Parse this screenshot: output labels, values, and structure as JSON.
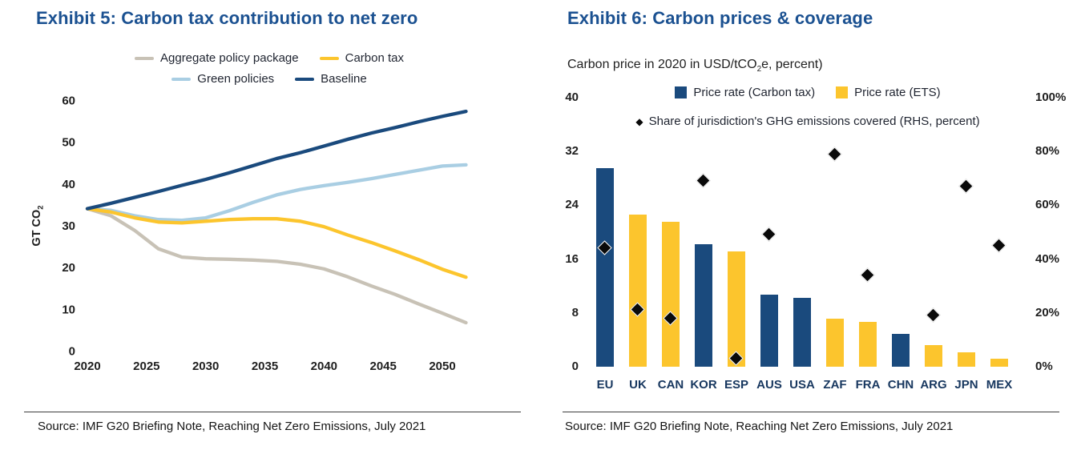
{
  "colors": {
    "navy": "#1a4a7d",
    "yellow": "#fcc52d",
    "lightblue": "#a9cee3",
    "gray": "#c8c2b6",
    "title_blue": "#1b5191",
    "diamond_black": "#0a0a0a",
    "tick_text": "#1f1f1f",
    "category_text": "#17375f"
  },
  "chart_data": [
    {
      "type": "line",
      "title": "Exhibit 5: Carbon tax contribution to net zero",
      "ylabel_pre": "GT CO",
      "ylabel_sub": "2",
      "ylim": [
        0,
        60
      ],
      "yticks": [
        0,
        10,
        20,
        30,
        40,
        50,
        60
      ],
      "xticks": [
        2020,
        2025,
        2030,
        2035,
        2040,
        2045,
        2050
      ],
      "x": [
        2020,
        2022,
        2024,
        2026,
        2028,
        2030,
        2032,
        2034,
        2036,
        2038,
        2040,
        2042,
        2044,
        2046,
        2048,
        2050,
        2052
      ],
      "series": [
        {
          "name": "Aggregate policy package",
          "color": "gray",
          "values": [
            34,
            32.3,
            28.8,
            24.4,
            22.4,
            22,
            21.9,
            21.7,
            21.4,
            20.7,
            19.6,
            17.7,
            15.5,
            13.5,
            11.2,
            9,
            6.7
          ]
        },
        {
          "name": "Green policies",
          "color": "lightblue",
          "values": [
            34,
            33.6,
            32.3,
            31.4,
            31.2,
            31.8,
            33.5,
            35.5,
            37.3,
            38.6,
            39.5,
            40.3,
            41.2,
            42.2,
            43.2,
            44.2,
            44.5
          ]
        },
        {
          "name": "Carbon tax",
          "color": "yellow",
          "values": [
            34,
            33.2,
            31.8,
            30.8,
            30.6,
            31,
            31.4,
            31.6,
            31.6,
            31,
            29.7,
            27.7,
            25.9,
            23.9,
            21.8,
            19.5,
            17.6
          ]
        },
        {
          "name": "Baseline",
          "color": "navy",
          "values": [
            34,
            35.3,
            36.7,
            38.1,
            39.6,
            41,
            42.6,
            44.3,
            46,
            47.4,
            49,
            50.6,
            52.1,
            53.4,
            54.8,
            56.1,
            57.3
          ]
        }
      ],
      "legend_rows": [
        [
          "Aggregate policy package",
          "Carbon tax"
        ],
        [
          "Green policies",
          "Baseline"
        ]
      ],
      "legend_position": "top",
      "grid": false,
      "source": "Source: IMF G20 Briefing Note, Reaching Net Zero Emissions, July 2021"
    },
    {
      "type": "bar",
      "title": "Exhibit 6: Carbon prices & coverage",
      "subtitle_pre": "Carbon price in 2020 in USD/tCO",
      "subtitle_sub": "2",
      "subtitle_post": "e, percent)",
      "legend": [
        {
          "name": "Price rate (Carbon tax)",
          "color": "navy"
        },
        {
          "name": "Price rate (ETS)",
          "color": "yellow"
        }
      ],
      "scatter_legend": "Share of jurisdiction's GHG emissions covered (RHS, percent)",
      "left_axis": {
        "ticks": [
          0,
          8,
          16,
          24,
          32,
          40
        ],
        "max": 40,
        "unit": "USD/tCO2e"
      },
      "right_axis": {
        "ticks": [
          "0%",
          "20%",
          "40%",
          "60%",
          "80%",
          "100%"
        ],
        "max": 100,
        "unit": "percent"
      },
      "categories": [
        "EU",
        "UK",
        "CAN",
        "KOR",
        "ESP",
        "AUS",
        "USA",
        "ZAF",
        "FRA",
        "CHN",
        "ARG",
        "JPN",
        "MEX"
      ],
      "bars": [
        {
          "label": "EU",
          "value": 29.5,
          "series": "Price rate (Carbon tax)",
          "color": "navy",
          "coverage_pct": 44
        },
        {
          "label": "UK",
          "value": 22.6,
          "series": "Price rate (ETS)",
          "color": "yellow",
          "coverage_pct": 21
        },
        {
          "label": "CAN",
          "value": 21.5,
          "series": "Price rate (ETS)",
          "color": "yellow",
          "coverage_pct": 18
        },
        {
          "label": "KOR",
          "value": 18.2,
          "series": "Price rate (Carbon tax)",
          "color": "navy",
          "coverage_pct": 69
        },
        {
          "label": "ESP",
          "value": 17.1,
          "series": "Price rate (ETS)",
          "color": "yellow",
          "coverage_pct": 3
        },
        {
          "label": "AUS",
          "value": 10.7,
          "series": "Price rate (Carbon tax)",
          "color": "navy",
          "coverage_pct": 49
        },
        {
          "label": "USA",
          "value": 10.2,
          "series": "Price rate (Carbon tax)",
          "color": "navy",
          "coverage_pct": null
        },
        {
          "label": "ZAF",
          "value": 7.1,
          "series": "Price rate (ETS)",
          "color": "yellow",
          "coverage_pct": 79
        },
        {
          "label": "FRA",
          "value": 6.7,
          "series": "Price rate (ETS)",
          "color": "yellow",
          "coverage_pct": 34
        },
        {
          "label": "CHN",
          "value": 4.9,
          "series": "Price rate (Carbon tax)",
          "color": "navy",
          "coverage_pct": null
        },
        {
          "label": "ARG",
          "value": 3.2,
          "series": "Price rate (ETS)",
          "color": "yellow",
          "coverage_pct": 19
        },
        {
          "label": "JPN",
          "value": 2.2,
          "series": "Price rate (ETS)",
          "color": "yellow",
          "coverage_pct": 67
        },
        {
          "label": "MEX",
          "value": 1.2,
          "series": "Price rate (ETS)",
          "color": "yellow",
          "coverage_pct": 45
        }
      ],
      "source": "Source: IMF G20 Briefing Note, Reaching Net Zero Emissions, July 2021"
    }
  ]
}
